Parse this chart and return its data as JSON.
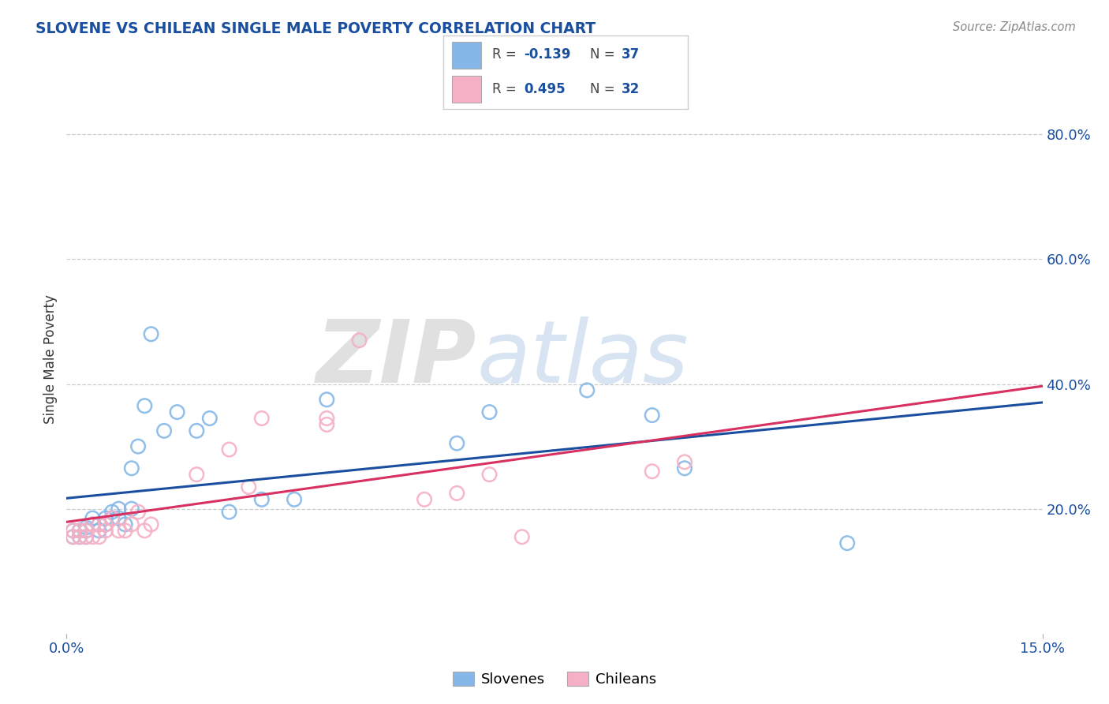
{
  "title": "SLOVENE VS CHILEAN SINGLE MALE POVERTY CORRELATION CHART",
  "source": "Source: ZipAtlas.com",
  "ylabel": "Single Male Poverty",
  "xlim": [
    0.0,
    0.15
  ],
  "ylim": [
    0.0,
    0.88
  ],
  "right_ytick_values": [
    0.2,
    0.4,
    0.6,
    0.8
  ],
  "right_ytick_labels": [
    "20.0%",
    "40.0%",
    "60.0%",
    "80.0%"
  ],
  "xtick_values": [
    0.0,
    0.15
  ],
  "xtick_labels": [
    "0.0%",
    "15.0%"
  ],
  "grid_color": "#cccccc",
  "bg_color": "#ffffff",
  "slovene_dot_color": "#85b8e8",
  "chilean_dot_color": "#f5b0c5",
  "slovene_line_color": "#1a4fa0",
  "chilean_line_color": "#d83060",
  "slovene_R": -0.139,
  "slovene_N": 37,
  "chilean_R": 0.495,
  "chilean_N": 32,
  "legend_slovene": "Slovenes",
  "legend_chilean": "Chileans",
  "watermark_zip": "ZIP",
  "watermark_atlas": "atlas",
  "title_color": "#1a4fa0",
  "axis_label_color": "#1a4fa0",
  "slovene_x": [
    0.001,
    0.001,
    0.002,
    0.002,
    0.003,
    0.003,
    0.003,
    0.004,
    0.004,
    0.005,
    0.005,
    0.006,
    0.006,
    0.007,
    0.007,
    0.008,
    0.008,
    0.009,
    0.01,
    0.01,
    0.011,
    0.012,
    0.013,
    0.015,
    0.017,
    0.02,
    0.022,
    0.025,
    0.03,
    0.035,
    0.04,
    0.06,
    0.065,
    0.08,
    0.09,
    0.095,
    0.12
  ],
  "slovene_y": [
    0.155,
    0.165,
    0.155,
    0.165,
    0.155,
    0.165,
    0.17,
    0.175,
    0.185,
    0.165,
    0.175,
    0.175,
    0.185,
    0.185,
    0.195,
    0.185,
    0.2,
    0.175,
    0.2,
    0.265,
    0.3,
    0.365,
    0.48,
    0.325,
    0.355,
    0.325,
    0.345,
    0.195,
    0.215,
    0.215,
    0.375,
    0.305,
    0.355,
    0.39,
    0.35,
    0.265,
    0.145
  ],
  "chilean_x": [
    0.001,
    0.001,
    0.002,
    0.002,
    0.003,
    0.003,
    0.004,
    0.004,
    0.005,
    0.005,
    0.006,
    0.006,
    0.007,
    0.008,
    0.009,
    0.01,
    0.011,
    0.012,
    0.013,
    0.02,
    0.025,
    0.028,
    0.03,
    0.04,
    0.04,
    0.045,
    0.055,
    0.06,
    0.065,
    0.07,
    0.09,
    0.095
  ],
  "chilean_y": [
    0.155,
    0.165,
    0.155,
    0.165,
    0.155,
    0.165,
    0.155,
    0.175,
    0.155,
    0.175,
    0.165,
    0.175,
    0.185,
    0.165,
    0.165,
    0.175,
    0.195,
    0.165,
    0.175,
    0.255,
    0.295,
    0.235,
    0.345,
    0.335,
    0.345,
    0.47,
    0.215,
    0.225,
    0.255,
    0.155,
    0.26,
    0.275
  ]
}
